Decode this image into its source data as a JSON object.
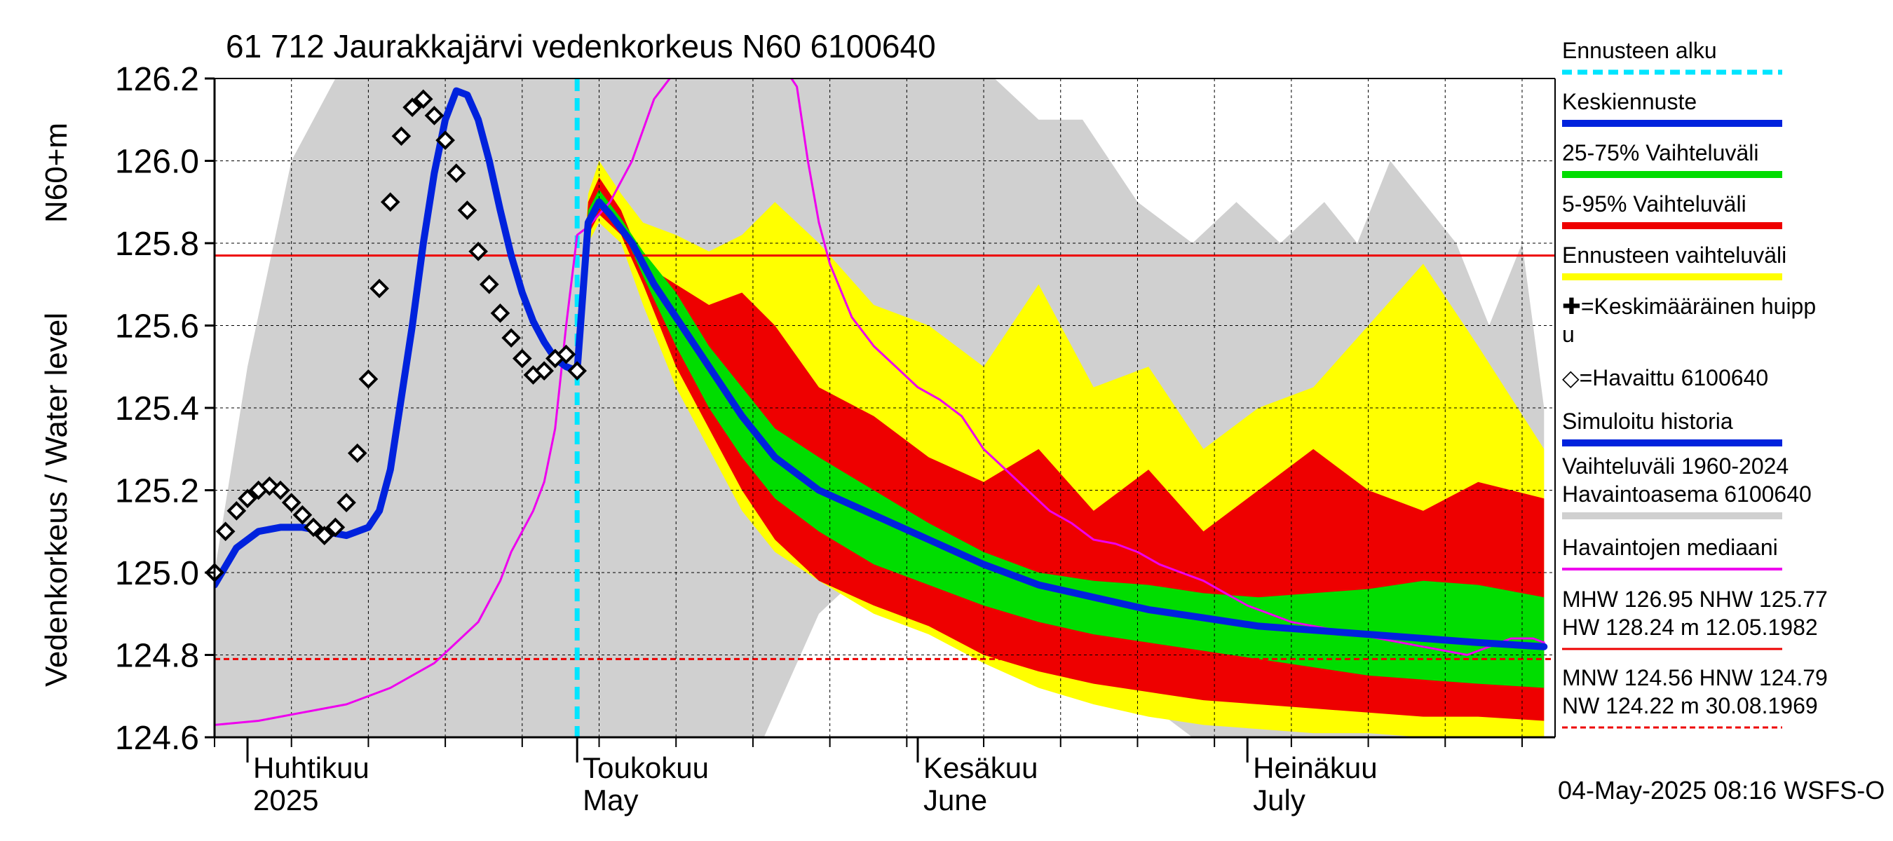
{
  "chart_data": {
    "type": "area",
    "title": "61 712 Jaurakkajärvi vedenkorkeus N60 6100640",
    "ylabel": "Vedenkorkeus / Water level",
    "yunit": "N60+m",
    "ylim": [
      124.6,
      126.2
    ],
    "yticks": [
      124.6,
      124.8,
      125.0,
      125.2,
      125.4,
      125.6,
      125.8,
      126.0,
      126.2
    ],
    "xlim": [
      "2025-03-29",
      "2025-07-29"
    ],
    "month_labels": [
      {
        "line1": "Huhtikuu",
        "line2": "2025",
        "date": "2025-04-01"
      },
      {
        "line1": "Toukokuu",
        "line2": "May",
        "date": "2025-05-01"
      },
      {
        "line1": "Kesäkuu",
        "line2": "June",
        "date": "2025-06-01"
      },
      {
        "line1": "Heinäkuu",
        "line2": "July",
        "date": "2025-07-01"
      }
    ],
    "forecast_start": "2025-05-01",
    "grid": true,
    "legend_position": "right",
    "reference_lines": {
      "hnw": 125.77,
      "mnw_dashed": 124.79
    },
    "footer": "04-May-2025 08:16 WSFS-O",
    "legend": [
      {
        "label": "Ennusteen alku",
        "color": "#00e5ff",
        "style": "dash"
      },
      {
        "label": "Keskiennuste",
        "color": "#0022dd",
        "style": "line"
      },
      {
        "label": "25-75% Vaihteluväli",
        "color": "#00dd00",
        "style": "line"
      },
      {
        "label": "5-95% Vaihteluväli",
        "color": "#ee0000",
        "style": "line"
      },
      {
        "label": "Ennusteen vaihteluväli",
        "color": "#ffff00",
        "style": "line"
      },
      {
        "label": "✚=Keskimääräinen huippu",
        "color": "#000000",
        "style": "none"
      },
      {
        "label": "◇=Havaittu 6100640",
        "color": "#000000",
        "style": "none"
      },
      {
        "label": "Simuloitu historia",
        "color": "#0022dd",
        "style": "line"
      },
      {
        "label": "Vaihteluväli 1960-2024 Havaintoasema 6100640",
        "color": "#d0d0d0",
        "style": "line"
      },
      {
        "label": "Havaintojen mediaani",
        "color": "#ee00ee",
        "style": "line"
      },
      {
        "label": "MHW 126.95 NHW 125.77 HW 128.24 m 12.05.1982",
        "color": "#ee0000",
        "style": "line"
      },
      {
        "label": "MNW 124.56 HNW 124.79 NW 124.22 m 30.08.1969",
        "color": "#ee0000",
        "style": "dash"
      }
    ],
    "series": [
      {
        "name": "Vaihteluväli 1960-2024",
        "kind": "band",
        "color": "#d0d0d0",
        "x": [
          0,
          3,
          7,
          11,
          15,
          19,
          23,
          26,
          30,
          34,
          38,
          42,
          46,
          50,
          55,
          59,
          63,
          67,
          71,
          75,
          79,
          84,
          89,
          93,
          97,
          101,
          104,
          107,
          110,
          113,
          116,
          119,
          121
        ],
        "lower": [
          124.6,
          124.6,
          124.6,
          124.6,
          124.6,
          124.6,
          124.6,
          124.6,
          124.6,
          124.6,
          124.6,
          124.6,
          124.6,
          124.6,
          124.9,
          125.0,
          125.1,
          125.1,
          125.0,
          124.9,
          124.8,
          124.7,
          124.6,
          124.6,
          124.6,
          124.6,
          124.6,
          124.6,
          124.6,
          124.6,
          124.6,
          124.6,
          124.6
        ],
        "upper": [
          125.0,
          125.5,
          126.0,
          126.2,
          126.2,
          126.2,
          126.2,
          126.2,
          126.2,
          126.2,
          126.2,
          126.2,
          126.2,
          126.2,
          126.2,
          126.2,
          126.2,
          126.2,
          126.2,
          126.1,
          126.1,
          125.9,
          125.8,
          125.9,
          125.8,
          125.9,
          125.8,
          126.0,
          125.9,
          125.8,
          125.6,
          125.8,
          125.4
        ]
      },
      {
        "name": "Ennusteen vaihteluväli",
        "kind": "band",
        "color": "#ffff00",
        "x": [
          33,
          34,
          35,
          37,
          39,
          42,
          45,
          48,
          51,
          55,
          60,
          65,
          70,
          75,
          80,
          85,
          90,
          95,
          100,
          105,
          110,
          115,
          121
        ],
        "lower": [
          125.48,
          125.8,
          125.85,
          125.8,
          125.65,
          125.45,
          125.3,
          125.15,
          125.05,
          124.98,
          124.9,
          124.85,
          124.78,
          124.72,
          124.68,
          124.65,
          124.63,
          124.62,
          124.61,
          124.61,
          124.6,
          124.6,
          124.6
        ],
        "upper": [
          125.5,
          125.92,
          126.0,
          125.92,
          125.85,
          125.82,
          125.78,
          125.82,
          125.9,
          125.8,
          125.65,
          125.6,
          125.5,
          125.7,
          125.45,
          125.5,
          125.3,
          125.4,
          125.45,
          125.6,
          125.75,
          125.55,
          125.3
        ]
      },
      {
        "name": "5-95% Vaihteluväli",
        "kind": "band",
        "color": "#ee0000",
        "x": [
          33,
          34,
          35,
          37,
          39,
          42,
          45,
          48,
          51,
          55,
          60,
          65,
          70,
          75,
          80,
          85,
          90,
          95,
          100,
          105,
          110,
          115,
          121
        ],
        "lower": [
          125.48,
          125.82,
          125.87,
          125.82,
          125.7,
          125.5,
          125.35,
          125.2,
          125.08,
          124.98,
          124.92,
          124.87,
          124.8,
          124.76,
          124.73,
          124.71,
          124.69,
          124.68,
          124.67,
          124.66,
          124.65,
          124.65,
          124.64
        ],
        "upper": [
          125.5,
          125.9,
          125.96,
          125.88,
          125.75,
          125.7,
          125.65,
          125.68,
          125.6,
          125.45,
          125.38,
          125.28,
          125.22,
          125.3,
          125.15,
          125.25,
          125.1,
          125.2,
          125.3,
          125.2,
          125.15,
          125.22,
          125.18
        ]
      },
      {
        "name": "25-75% Vaihteluväli",
        "kind": "band",
        "color": "#00dd00",
        "x": [
          33,
          34,
          35,
          37,
          39,
          42,
          45,
          48,
          51,
          55,
          60,
          65,
          70,
          75,
          80,
          85,
          90,
          95,
          100,
          105,
          110,
          115,
          121
        ],
        "lower": [
          125.48,
          125.84,
          125.89,
          125.84,
          125.72,
          125.55,
          125.4,
          125.28,
          125.18,
          125.1,
          125.02,
          124.97,
          124.92,
          124.88,
          124.85,
          124.83,
          124.81,
          124.79,
          124.77,
          124.75,
          124.74,
          124.73,
          124.72
        ],
        "upper": [
          125.5,
          125.88,
          125.93,
          125.86,
          125.78,
          125.68,
          125.55,
          125.45,
          125.35,
          125.28,
          125.2,
          125.12,
          125.05,
          125.0,
          124.98,
          124.97,
          124.95,
          124.94,
          124.95,
          124.96,
          124.98,
          124.97,
          124.94
        ]
      },
      {
        "name": "Havaintojen mediaani",
        "kind": "line",
        "color": "#ee00ee",
        "x": [
          0,
          4,
          8,
          12,
          16,
          20,
          22,
          24,
          26,
          27,
          28,
          29,
          30,
          31,
          32,
          33,
          34,
          36,
          38,
          40,
          42,
          44,
          46,
          48,
          50,
          52,
          53,
          54,
          55,
          56,
          58,
          60,
          62,
          64,
          66,
          68,
          70,
          72,
          74,
          76,
          78,
          80,
          82,
          84,
          86,
          88,
          90,
          92,
          94,
          96,
          98,
          100,
          102,
          104,
          106,
          108,
          110,
          112,
          114,
          116,
          118,
          120,
          121
        ],
        "y": [
          124.63,
          124.64,
          124.66,
          124.68,
          124.72,
          124.78,
          124.83,
          124.88,
          124.98,
          125.05,
          125.1,
          125.15,
          125.22,
          125.35,
          125.6,
          125.82,
          125.84,
          125.9,
          126.0,
          126.15,
          126.22,
          126.3,
          126.35,
          126.32,
          126.28,
          126.22,
          126.18,
          126.0,
          125.85,
          125.75,
          125.62,
          125.55,
          125.5,
          125.45,
          125.42,
          125.38,
          125.3,
          125.25,
          125.2,
          125.15,
          125.12,
          125.08,
          125.07,
          125.05,
          125.02,
          125.0,
          124.98,
          124.95,
          124.92,
          124.9,
          124.88,
          124.87,
          124.86,
          124.85,
          124.84,
          124.83,
          124.82,
          124.81,
          124.8,
          124.82,
          124.84,
          124.84,
          124.83
        ]
      },
      {
        "name": "Simuloitu historia",
        "kind": "line",
        "color": "#0022dd",
        "x": [
          0,
          2,
          4,
          6,
          8,
          10,
          12,
          14,
          15,
          16,
          18,
          19,
          20,
          21,
          22,
          23,
          24,
          25,
          26,
          27,
          28,
          29,
          30,
          31,
          32,
          33
        ],
        "y": [
          124.97,
          125.06,
          125.1,
          125.11,
          125.11,
          125.1,
          125.09,
          125.11,
          125.15,
          125.25,
          125.6,
          125.8,
          125.97,
          126.1,
          126.17,
          126.16,
          126.1,
          126.0,
          125.88,
          125.77,
          125.68,
          125.61,
          125.56,
          125.52,
          125.5,
          125.49
        ]
      },
      {
        "name": "Keskiennuste",
        "kind": "line",
        "color": "#0022dd",
        "x": [
          33,
          34,
          35,
          36,
          38,
          40,
          42,
          45,
          48,
          51,
          55,
          60,
          65,
          70,
          75,
          80,
          85,
          90,
          95,
          100,
          105,
          110,
          115,
          121
        ],
        "y": [
          125.49,
          125.85,
          125.9,
          125.87,
          125.8,
          125.7,
          125.62,
          125.5,
          125.38,
          125.28,
          125.2,
          125.14,
          125.08,
          125.02,
          124.97,
          124.94,
          124.91,
          124.89,
          124.87,
          124.86,
          124.85,
          124.84,
          124.83,
          124.82
        ]
      },
      {
        "name": "Havaittu 6100640",
        "kind": "points",
        "color": "#000000",
        "x": [
          0,
          1,
          2,
          3,
          4,
          5,
          6,
          7,
          8,
          9,
          10,
          11,
          12,
          13,
          14,
          15,
          16,
          17,
          18,
          19,
          20,
          21,
          22,
          23,
          24,
          25,
          26,
          27,
          28,
          29,
          30,
          31,
          32,
          33
        ],
        "y": [
          125.0,
          125.1,
          125.15,
          125.18,
          125.2,
          125.21,
          125.2,
          125.17,
          125.14,
          125.11,
          125.09,
          125.11,
          125.17,
          125.29,
          125.47,
          125.69,
          125.9,
          126.06,
          126.13,
          126.15,
          126.11,
          126.05,
          125.97,
          125.88,
          125.78,
          125.7,
          125.63,
          125.57,
          125.52,
          125.48,
          125.49,
          125.52,
          125.53,
          125.49
        ]
      }
    ],
    "x_encoding_note": ""
  }
}
